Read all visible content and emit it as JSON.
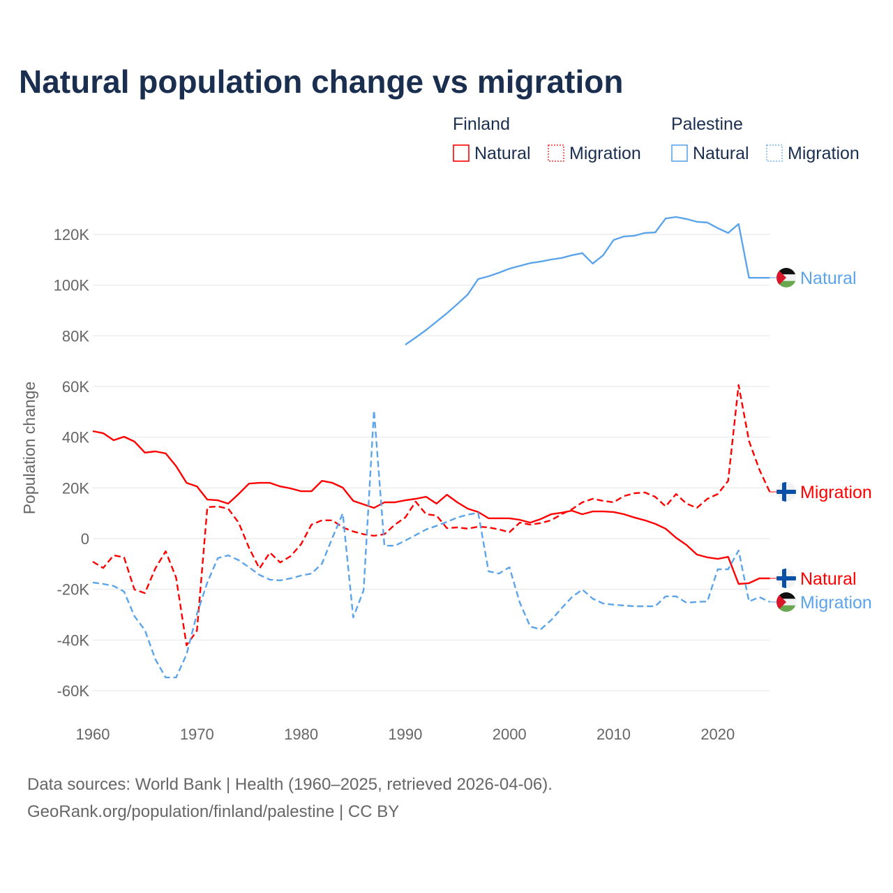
{
  "chart_data": {
    "type": "line",
    "title": "Natural population change vs migration",
    "ylabel": "Population change",
    "xlabel": "",
    "xlim": [
      1960,
      2025
    ],
    "ylim": [
      -70000,
      130000
    ],
    "grid": true,
    "x_ticks": [
      1960,
      1970,
      1980,
      1990,
      2000,
      2010,
      2020
    ],
    "x_tick_labels": [
      "1960",
      "1970",
      "1980",
      "1990",
      "2000",
      "2010",
      "2020"
    ],
    "y_ticks": [
      -60000,
      -40000,
      -20000,
      0,
      20000,
      40000,
      60000,
      80000,
      100000,
      120000
    ],
    "y_tick_labels": [
      "-60K",
      "-40K",
      "-20K",
      "0",
      "20K",
      "40K",
      "60K",
      "80K",
      "100K",
      "120K"
    ],
    "legend": {
      "placement": "top-right",
      "groups": [
        {
          "country": "Finland",
          "items": [
            {
              "label": "Natural",
              "style": "solid",
              "color": "#ff0000"
            },
            {
              "label": "Migration",
              "style": "dotted",
              "color": "#ff0000"
            }
          ]
        },
        {
          "country": "Palestine",
          "items": [
            {
              "label": "Natural",
              "style": "solid",
              "color": "#5ba4ea"
            },
            {
              "label": "Migration",
              "style": "dotted",
              "color": "#5ba4ea"
            }
          ]
        }
      ]
    },
    "series": [
      {
        "name": "Finland Natural",
        "country": "Finland",
        "end_label": "Natural",
        "color": "#ff0000",
        "dashed": false,
        "start_year": 1960,
        "values": [
          42400,
          41600,
          38800,
          40200,
          38300,
          33900,
          34400,
          33600,
          28600,
          22000,
          20600,
          15400,
          15100,
          13800,
          17600,
          21700,
          22000,
          22000,
          20600,
          19800,
          18700,
          18700,
          22800,
          22000,
          20100,
          14900,
          13500,
          12100,
          14300,
          14300,
          15100,
          15700,
          16500,
          13800,
          17300,
          14300,
          11800,
          10500,
          8000,
          8000,
          8000,
          7400,
          6300,
          7700,
          9600,
          10200,
          11000,
          9600,
          10700,
          10700,
          10500,
          9600,
          8300,
          7200,
          5800,
          3900,
          300,
          -2500,
          -6300,
          -7400,
          -8000,
          -7200,
          -17900,
          -17600,
          -15700,
          -15700
        ]
      },
      {
        "name": "Finland Migration",
        "country": "Finland",
        "end_label": "Migration",
        "color": "#ff0000",
        "dashed": true,
        "start_year": 1960,
        "values": [
          -9100,
          -11600,
          -6600,
          -7400,
          -20100,
          -21500,
          -11800,
          -5000,
          -15400,
          -42100,
          -36300,
          12400,
          12700,
          11800,
          6300,
          -3600,
          -11800,
          -5500,
          -9400,
          -6900,
          -2200,
          5500,
          7200,
          7200,
          4400,
          2800,
          1700,
          1100,
          1700,
          5500,
          8300,
          14600,
          9600,
          9100,
          4100,
          4400,
          3900,
          4700,
          4400,
          3600,
          2500,
          6300,
          5500,
          6100,
          7200,
          9600,
          11600,
          14300,
          15700,
          14900,
          14300,
          16800,
          17900,
          18200,
          16500,
          12700,
          17600,
          13800,
          12100,
          15700,
          17600,
          22800,
          60600,
          38500,
          27200,
          18400
        ]
      },
      {
        "name": "Palestine Natural",
        "country": "Palestine",
        "end_label": "Natural",
        "color": "#5ba4ea",
        "dashed": false,
        "start_year": 1990,
        "values": [
          76500,
          79300,
          82300,
          85600,
          88900,
          92500,
          96300,
          102400,
          103500,
          104900,
          106500,
          107600,
          108700,
          109300,
          110100,
          110700,
          111800,
          112600,
          108500,
          111800,
          117800,
          119200,
          119500,
          120600,
          120800,
          126300,
          126900,
          126100,
          125000,
          124700,
          122500,
          120600,
          124100,
          102900,
          102900,
          102900
        ]
      },
      {
        "name": "Palestine Migration",
        "country": "Palestine",
        "end_label": "Migration",
        "color": "#5ba4ea",
        "dashed": true,
        "start_year": 1960,
        "values": [
          -17300,
          -17900,
          -18700,
          -20900,
          -30600,
          -36100,
          -47600,
          -54800,
          -54800,
          -45700,
          -29700,
          -17300,
          -7700,
          -6600,
          -8500,
          -11300,
          -14300,
          -16200,
          -16500,
          -15700,
          -14600,
          -13800,
          -9900,
          300,
          9900,
          -31100,
          -20400,
          50600,
          -2800,
          -2800,
          -800,
          1400,
          3600,
          5000,
          6600,
          8300,
          9400,
          10200,
          -12900,
          -13800,
          -11300,
          -25300,
          -34700,
          -35800,
          -32200,
          -27500,
          -23100,
          -20100,
          -23700,
          -25600,
          -26100,
          -26400,
          -26700,
          -26700,
          -26700,
          -22800,
          -22800,
          -25300,
          -25000,
          -24800,
          -12100,
          -12100,
          -4700,
          -24800,
          -23100,
          -25000
        ]
      }
    ]
  },
  "footer": {
    "line1": "Data sources: World Bank | Health (1960–2025, retrieved 2026-04-06).",
    "line2": "GeoRank.org/population/finland/palestine | CC BY"
  }
}
